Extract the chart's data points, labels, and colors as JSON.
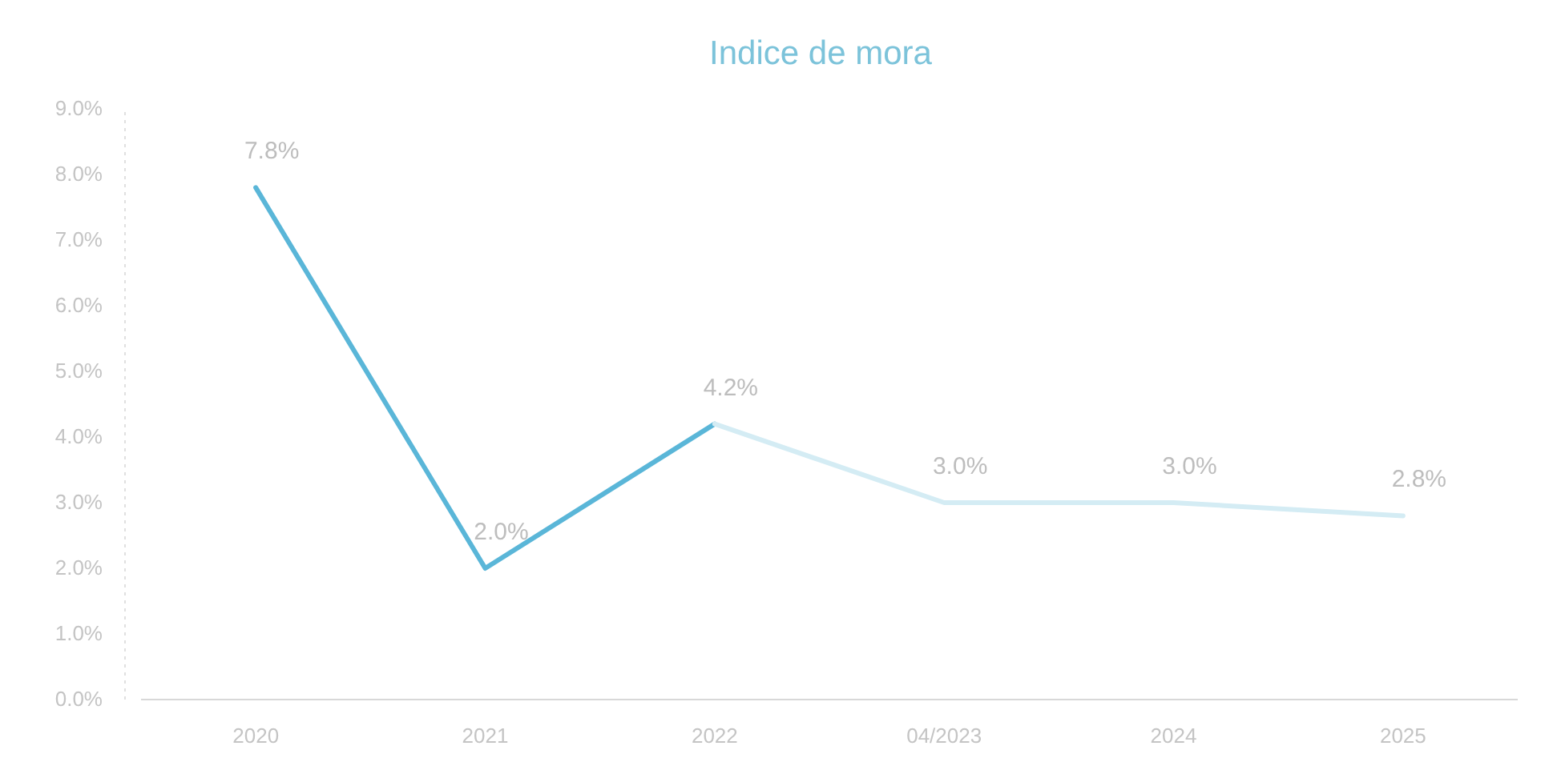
{
  "chart_data": {
    "type": "line",
    "title": "Indice de mora",
    "categories": [
      "2020",
      "2021",
      "2022",
      "04/2023",
      "2024",
      "2025"
    ],
    "series": [
      {
        "color": "#5ab6d8",
        "values": [
          7.8,
          2.0,
          4.2,
          null,
          null,
          null
        ],
        "value_labels": [
          "7.8%",
          "2.0%",
          "4.2%",
          null,
          null,
          null
        ]
      },
      {
        "color": "#d4ecf4",
        "values": [
          null,
          null,
          4.2,
          3.0,
          3.0,
          2.8
        ],
        "value_labels": [
          null,
          null,
          null,
          "3.0%",
          "3.0%",
          "2.8%"
        ]
      }
    ],
    "ylim": [
      0,
      9
    ],
    "yticks": [
      {
        "value": 0,
        "label": "0.0%"
      },
      {
        "value": 1,
        "label": "1.0%"
      },
      {
        "value": 2,
        "label": "2.0%"
      },
      {
        "value": 3,
        "label": "3.0%"
      },
      {
        "value": 4,
        "label": "4.0%"
      },
      {
        "value": 5,
        "label": "5.0%"
      },
      {
        "value": 6,
        "label": "6.0%"
      },
      {
        "value": 7,
        "label": "7.0%"
      },
      {
        "value": 8,
        "label": "8.0%"
      },
      {
        "value": 9,
        "label": "9.0%"
      }
    ]
  }
}
